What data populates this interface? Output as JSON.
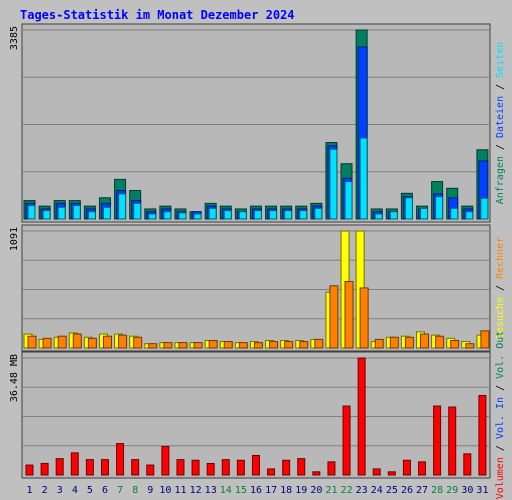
{
  "title": "Tages-Statistik im Monat Dezember 2024",
  "colors": {
    "background": "#c0c0c0",
    "panel": "#b8b8b8",
    "grid": "#808080",
    "title": "#0000ff",
    "anfragen": "#008060",
    "dateien": "#0040ff",
    "seiten": "#00e0ff",
    "besuche": "#ffff00",
    "rechner": "#ff8000",
    "volumen": "#ff0000",
    "weekday_label": "#000080",
    "weekend_label": "#008040"
  },
  "chart_data": [
    {
      "type": "bar",
      "x": [
        "1",
        "2",
        "3",
        "4",
        "5",
        "6",
        "7",
        "8",
        "9",
        "10",
        "11",
        "12",
        "13",
        "14",
        "15",
        "16",
        "17",
        "18",
        "19",
        "20",
        "21",
        "22",
        "23",
        "24",
        "25",
        "26",
        "27",
        "28",
        "29",
        "30",
        "31"
      ],
      "weekend_days": [
        "7",
        "8",
        "14",
        "15",
        "21",
        "22",
        "28",
        "29"
      ],
      "ylabel": "3385",
      "ylim": [
        0,
        3385
      ],
      "legend": [
        "Anfragen",
        "Dateien",
        "Seiten"
      ],
      "series": [
        {
          "name": "Anfragen",
          "color": "#008060",
          "values": [
            330,
            230,
            330,
            330,
            230,
            380,
            710,
            510,
            180,
            230,
            180,
            130,
            280,
            230,
            180,
            230,
            230,
            230,
            230,
            280,
            1370,
            990,
            3385,
            180,
            180,
            460,
            230,
            670,
            550,
            230,
            1240
          ]
        },
        {
          "name": "Dateien",
          "color": "#0040ff",
          "values": [
            280,
            180,
            280,
            280,
            180,
            280,
            510,
            330,
            130,
            180,
            130,
            130,
            230,
            180,
            130,
            180,
            180,
            180,
            180,
            230,
            1310,
            730,
            3080,
            130,
            130,
            400,
            180,
            450,
            380,
            180,
            1040
          ]
        },
        {
          "name": "Seiten",
          "color": "#00e0ff",
          "values": [
            240,
            150,
            210,
            240,
            130,
            210,
            450,
            280,
            90,
            130,
            110,
            90,
            190,
            150,
            130,
            150,
            150,
            150,
            150,
            190,
            1250,
            670,
            1450,
            90,
            130,
            380,
            190,
            400,
            190,
            130,
            370
          ]
        }
      ]
    },
    {
      "type": "bar",
      "ylabel": "1091",
      "ylim": [
        0,
        1091
      ],
      "legend": [
        "Besuche",
        "Rechner"
      ],
      "series": [
        {
          "name": "Besuche",
          "color": "#ffff00",
          "values": [
            130,
            80,
            100,
            140,
            100,
            130,
            130,
            110,
            40,
            50,
            50,
            50,
            70,
            60,
            50,
            60,
            70,
            70,
            70,
            80,
            520,
            1091,
            1091,
            60,
            100,
            110,
            150,
            120,
            90,
            60,
            120
          ]
        },
        {
          "name": "Rechner",
          "color": "#ff8000",
          "values": [
            110,
            90,
            110,
            130,
            90,
            110,
            120,
            100,
            40,
            50,
            50,
            50,
            70,
            60,
            50,
            50,
            60,
            60,
            60,
            80,
            580,
            620,
            560,
            80,
            100,
            100,
            130,
            110,
            70,
            40,
            160
          ]
        }
      ]
    },
    {
      "type": "bar",
      "ylabel": "36.48 MB",
      "ylim": [
        0,
        36.48
      ],
      "legend": [
        "Volumen",
        "Vol. In",
        "Vol. Out"
      ],
      "series": [
        {
          "name": "Volumen",
          "color": "#ff0000",
          "values": [
            3.1,
            3.6,
            5.1,
            6.9,
            4.8,
            4.8,
            9.8,
            4.8,
            3.1,
            8.9,
            4.8,
            4.6,
            3.6,
            4.8,
            4.6,
            6.1,
            1.9,
            4.6,
            5.1,
            1.0,
            4.1,
            21.5,
            36.48,
            1.9,
            1.0,
            4.6,
            4.1,
            21.5,
            21.2,
            6.6,
            24.8
          ]
        }
      ]
    }
  ]
}
